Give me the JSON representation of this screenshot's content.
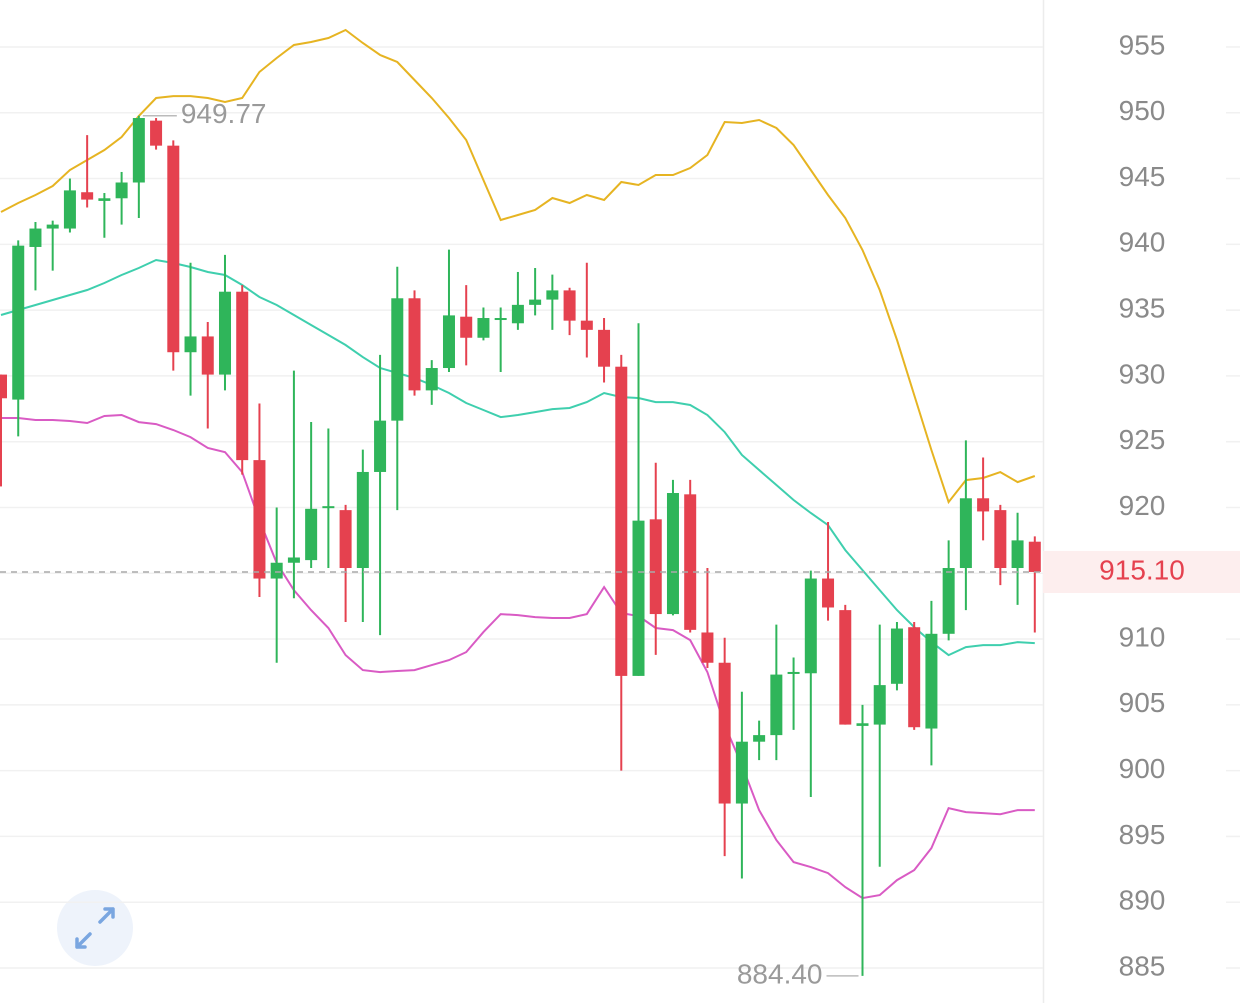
{
  "chart_data": {
    "type": "candlestick",
    "ylim": [
      882.34,
      958.57
    ],
    "yticks": [
      885,
      890,
      895,
      900,
      905,
      910,
      915,
      920,
      925,
      930,
      935,
      940,
      945,
      950,
      955
    ],
    "grid": true,
    "up_color": "#2fb55a",
    "down_color": "#e5414f",
    "open": [
      930.1,
      928.2,
      939.8,
      941.2,
      941.2,
      943.96,
      943.3,
      943.5,
      944.7,
      949.4,
      947.5,
      931.8,
      933.0,
      930.1,
      936.4,
      923.6,
      914.6,
      915.8,
      916.0,
      920.0,
      919.8,
      915.4,
      922.7,
      926.6,
      935.9,
      928.9,
      930.6,
      934.5,
      932.9,
      934.3,
      934.0,
      935.4,
      935.8,
      936.5,
      934.2,
      933.5,
      930.7,
      907.2,
      919.1,
      911.9,
      921.0,
      910.5,
      908.2,
      897.5,
      902.2,
      902.7,
      907.4,
      907.4,
      914.6,
      912.2,
      903.4,
      903.5,
      906.6,
      910.9,
      903.2,
      910.4,
      915.4,
      920.7,
      919.8,
      915.4,
      917.4
    ],
    "high": [
      930.1,
      940.3,
      941.7,
      941.8,
      945.0,
      948.3,
      943.9,
      945.5,
      949.77,
      949.6,
      947.9,
      938.6,
      934.1,
      939.2,
      936.9,
      927.9,
      920.0,
      930.4,
      926.5,
      926.0,
      920.2,
      924.4,
      931.6,
      938.3,
      936.5,
      931.2,
      939.6,
      936.9,
      935.2,
      935.2,
      937.9,
      938.2,
      937.7,
      936.7,
      938.6,
      934.4,
      931.6,
      934.0,
      923.4,
      922.1,
      922.1,
      915.4,
      910.1,
      906.0,
      903.8,
      911.1,
      908.6,
      915.2,
      918.9,
      912.6,
      905.0,
      911.1,
      911.3,
      911.3,
      912.9,
      917.5,
      925.1,
      923.8,
      920.2,
      919.6,
      917.8
    ],
    "low": [
      921.6,
      925.4,
      936.5,
      938.0,
      940.9,
      942.8,
      940.5,
      941.5,
      942.0,
      947.2,
      930.4,
      928.5,
      926.0,
      928.9,
      922.5,
      913.2,
      908.2,
      913.1,
      915.4,
      915.4,
      911.3,
      911.3,
      910.3,
      919.8,
      928.5,
      927.8,
      930.3,
      930.8,
      932.7,
      930.3,
      933.5,
      934.6,
      933.5,
      933.1,
      931.4,
      929.5,
      900.0,
      907.2,
      908.8,
      911.8,
      910.5,
      907.8,
      893.5,
      891.8,
      900.8,
      900.8,
      903.1,
      898.0,
      911.4,
      903.5,
      884.4,
      892.7,
      906.1,
      903.1,
      900.4,
      909.9,
      912.2,
      917.5,
      914.1,
      912.6,
      910.5
    ],
    "close": [
      928.3,
      939.9,
      941.2,
      941.5,
      944.1,
      943.4,
      943.5,
      944.7,
      949.6,
      947.5,
      931.8,
      933.0,
      930.1,
      936.4,
      923.6,
      914.6,
      915.8,
      916.2,
      919.9,
      920.1,
      915.4,
      922.7,
      926.6,
      935.9,
      928.9,
      930.6,
      934.6,
      932.9,
      934.4,
      934.4,
      935.4,
      935.8,
      936.5,
      934.2,
      933.5,
      930.7,
      907.2,
      919.0,
      911.9,
      921.1,
      910.7,
      908.2,
      897.5,
      902.2,
      902.7,
      907.3,
      907.5,
      914.6,
      912.4,
      903.5,
      903.6,
      906.5,
      910.8,
      903.3,
      910.4,
      915.4,
      920.7,
      919.7,
      915.4,
      917.5,
      915.1
    ],
    "bands": [
      {
        "color": "#e6b422",
        "values": [
          942.46,
          943.14,
          943.75,
          944.43,
          945.65,
          946.41,
          947.17,
          948.16,
          949.75,
          951.12,
          951.27,
          951.27,
          951.12,
          950.82,
          951.12,
          953.1,
          954.16,
          955.15,
          955.38,
          955.68,
          956.29,
          955.3,
          954.39,
          953.86,
          952.49,
          951.12,
          949.6,
          947.93,
          944.89,
          941.85,
          942.23,
          942.61,
          943.52,
          943.14,
          943.75,
          943.37,
          944.74,
          944.51,
          945.27,
          945.27,
          945.8,
          946.79,
          949.3,
          949.22,
          949.45,
          948.84,
          947.55,
          945.65,
          943.75,
          942.0,
          939.57,
          936.53,
          932.73,
          928.55,
          924.37,
          920.41,
          922.08,
          922.24,
          922.69,
          921.93,
          922.39
        ]
      },
      {
        "color": "#3fcfae",
        "values": [
          934.63,
          935.01,
          935.39,
          935.77,
          936.15,
          936.53,
          937.06,
          937.67,
          938.2,
          938.81,
          938.58,
          938.28,
          937.9,
          937.67,
          936.91,
          936.0,
          935.39,
          934.63,
          933.87,
          933.11,
          932.35,
          931.43,
          930.6,
          930.22,
          929.84,
          929.31,
          928.7,
          927.94,
          927.41,
          926.87,
          927.03,
          927.25,
          927.48,
          927.56,
          928.01,
          928.7,
          928.39,
          928.32,
          928.01,
          928.01,
          927.79,
          927.03,
          925.73,
          923.99,
          922.85,
          921.71,
          920.57,
          919.58,
          918.66,
          916.76,
          915.24,
          913.72,
          912.2,
          910.91,
          909.77,
          908.78,
          909.39,
          909.54,
          909.54,
          909.77,
          909.69
        ]
      },
      {
        "color": "#d95bc4",
        "values": [
          926.8,
          926.8,
          926.65,
          926.65,
          926.57,
          926.42,
          926.95,
          927.03,
          926.49,
          926.34,
          925.89,
          925.35,
          924.52,
          924.21,
          922.69,
          919.04,
          915.78,
          913.72,
          912.2,
          910.84,
          908.78,
          907.64,
          907.49,
          907.57,
          907.64,
          908.02,
          908.4,
          909.01,
          910.53,
          911.9,
          911.82,
          911.67,
          911.6,
          911.6,
          911.9,
          913.95,
          911.97,
          911.75,
          910.84,
          910.68,
          909.92,
          907.49,
          903.46,
          900.42,
          897.0,
          894.72,
          893.05,
          892.67,
          892.21,
          891.15,
          890.31,
          890.54,
          891.68,
          892.44,
          894.11,
          897.15,
          896.85,
          896.77,
          896.69,
          897.0,
          897.0
        ]
      }
    ],
    "last_price": {
      "value": 915.1,
      "label": "915.10"
    },
    "high_label": {
      "value": 949.77,
      "label": "949.77"
    },
    "low_label": {
      "value": 884.4,
      "label": "884.40"
    }
  }
}
